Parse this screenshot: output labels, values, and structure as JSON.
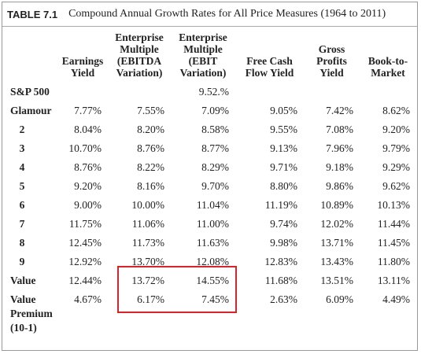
{
  "header": {
    "table_label": "TABLE 7.1",
    "title": "Compound Annual Growth Rates for All Price Measures (1964 to 2011)"
  },
  "table": {
    "columns": [
      "Earnings\nYield",
      "Enterprise\nMultiple\n(EBITDA\nVariation)",
      "Enterprise\nMultiple\n(EBIT\nVariation)",
      "Free Cash\nFlow Yield",
      "Gross\nProfits\nYield",
      "Book-to-\nMarket"
    ],
    "rows": [
      {
        "label": "S&P 500",
        "values": [
          null,
          null,
          "9.52.%",
          null,
          null,
          null
        ]
      },
      {
        "label": "Glamour",
        "values": [
          "7.77%",
          "7.55%",
          "7.09%",
          "9.05%",
          "7.42%",
          "8.62%"
        ]
      },
      {
        "label": "2",
        "values": [
          "8.04%",
          "8.20%",
          "8.58%",
          "9.55%",
          "7.08%",
          "9.20%"
        ]
      },
      {
        "label": "3",
        "values": [
          "10.70%",
          "8.76%",
          "8.77%",
          "9.13%",
          "7.96%",
          "9.79%"
        ]
      },
      {
        "label": "4",
        "values": [
          "8.76%",
          "8.22%",
          "8.29%",
          "9.71%",
          "9.18%",
          "9.29%"
        ]
      },
      {
        "label": "5",
        "values": [
          "9.20%",
          "8.16%",
          "9.70%",
          "8.80%",
          "9.86%",
          "9.62%"
        ]
      },
      {
        "label": "6",
        "values": [
          "9.00%",
          "10.00%",
          "11.04%",
          "11.19%",
          "10.89%",
          "10.13%"
        ]
      },
      {
        "label": "7",
        "values": [
          "11.75%",
          "11.06%",
          "11.00%",
          "9.74%",
          "12.02%",
          "11.44%"
        ]
      },
      {
        "label": "8",
        "values": [
          "12.45%",
          "11.73%",
          "11.63%",
          "9.98%",
          "13.71%",
          "11.45%"
        ]
      },
      {
        "label": "9",
        "values": [
          "12.92%",
          "13.70%",
          "12.08%",
          "12.83%",
          "13.43%",
          "11.80%"
        ]
      },
      {
        "label": "Value",
        "values": [
          "12.44%",
          "13.72%",
          "14.55%",
          "11.68%",
          "13.51%",
          "13.11%"
        ]
      },
      {
        "label": "Value\nPremium\n(10-1)",
        "values": [
          "4.67%",
          "6.17%",
          "7.45%",
          "2.63%",
          "6.09%",
          "4.49%"
        ]
      }
    ]
  }
}
